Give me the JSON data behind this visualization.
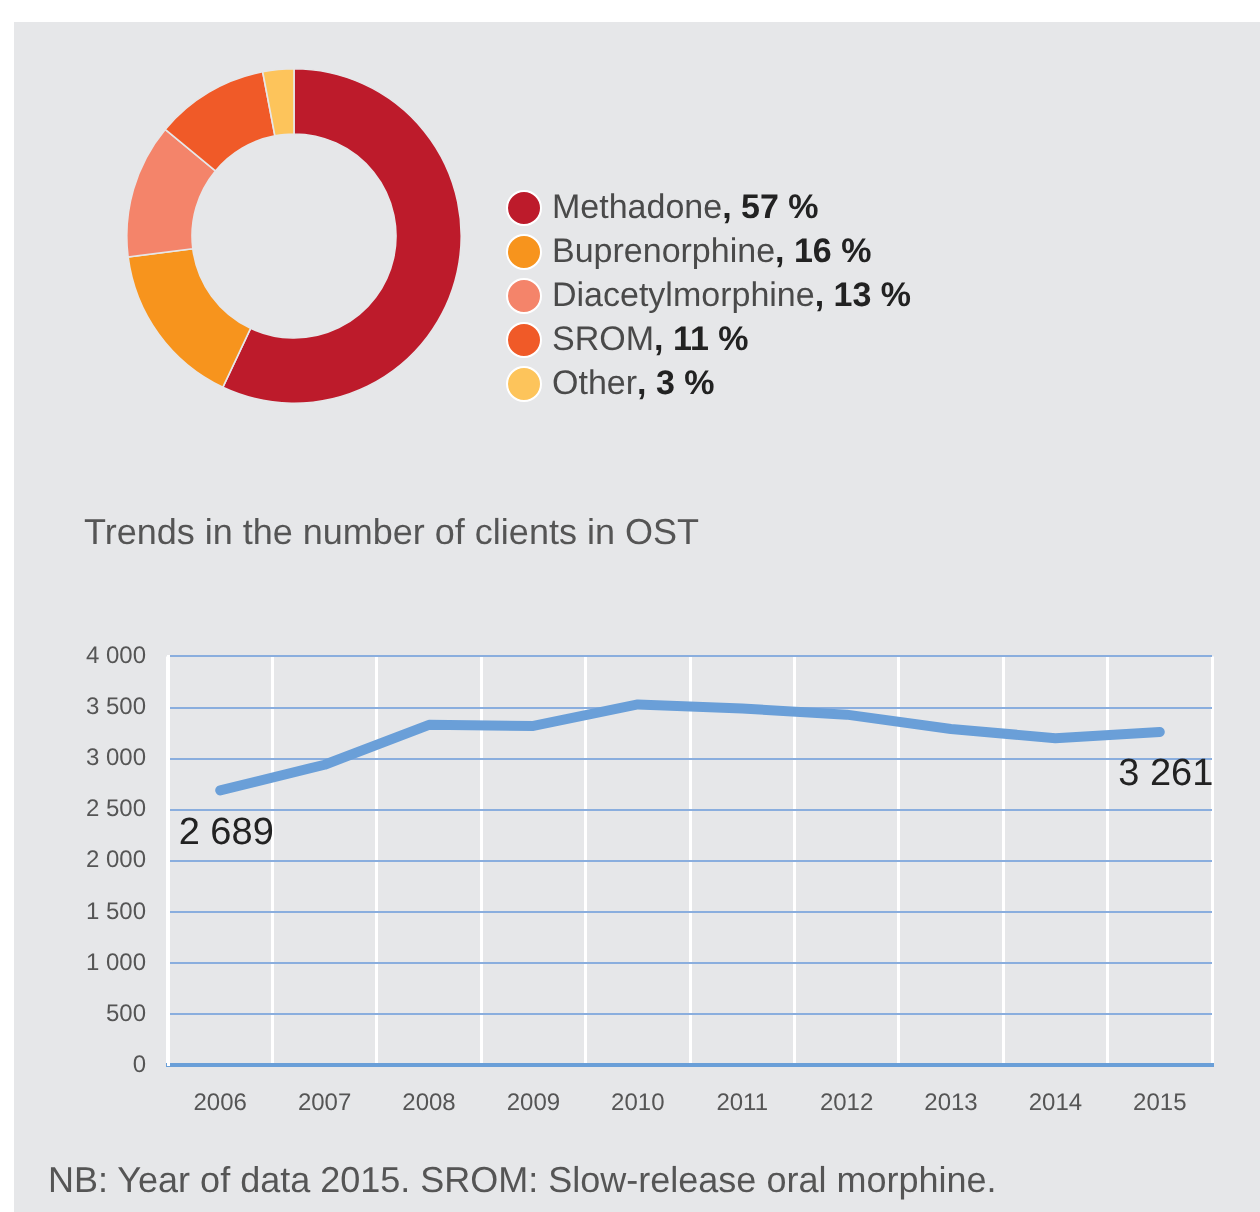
{
  "chart_data": [
    {
      "type": "donut",
      "categories": [
        "Methadone",
        "Buprenorphine",
        "Diacetylmorphine",
        "SROM",
        "Other"
      ],
      "values": [
        57,
        16,
        13,
        11,
        3
      ],
      "colors": [
        "#bd1b2b",
        "#f7941d",
        "#f4846a",
        "#f05a28",
        "#fdc45b"
      ],
      "value_labels": [
        ", 57 %",
        ", 16 %",
        ", 13 %",
        ", 11 %",
        ", 3 %"
      ],
      "legend": "right"
    },
    {
      "type": "line",
      "title": "Trends in the number of clients in OST",
      "categories": [
        "2006",
        "2007",
        "2008",
        "2009",
        "2010",
        "2011",
        "2012",
        "2013",
        "2014",
        "2015"
      ],
      "values": [
        2689,
        2940,
        3330,
        3320,
        3530,
        3490,
        3430,
        3290,
        3200,
        3261
      ],
      "color": "#6a9fd8",
      "value_labels": [
        "2 689",
        null,
        null,
        null,
        null,
        null,
        null,
        null,
        null,
        "3 261"
      ],
      "ylim": [
        0,
        4000
      ],
      "yticks": [
        0,
        500,
        {
          "value": 1000,
          "label": "1 000"
        },
        {
          "value": 1500,
          "label": "1 500"
        },
        {
          "value": 2000,
          "label": "2 000"
        },
        {
          "value": 2500,
          "label": "2 500"
        },
        {
          "value": 3000,
          "label": "3 000"
        },
        {
          "value": 3500,
          "label": "3 500"
        },
        {
          "value": 4000,
          "label": "4 000"
        }
      ],
      "grid": true,
      "marker": "none",
      "line_style": "solid",
      "annotations": [
        "NB: Year of data 2015. SROM: Slow-release oral morphine."
      ]
    }
  ]
}
